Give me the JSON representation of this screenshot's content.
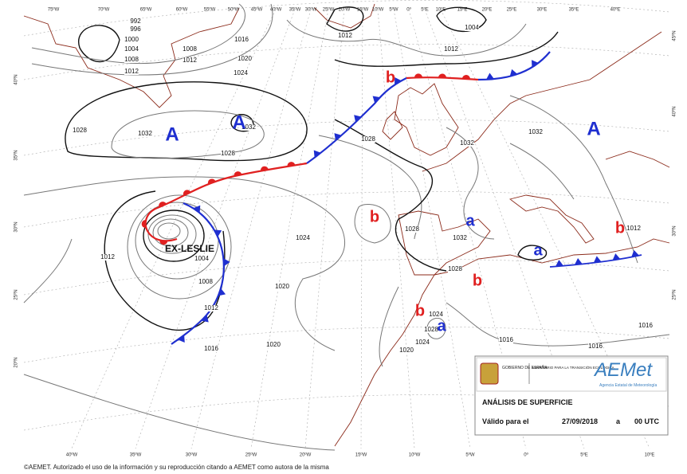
{
  "map": {
    "top_longitudes": [
      "75ºW",
      "70ºW",
      "65ºW",
      "60ºW",
      "55ºW",
      "50ºW",
      "45ºW",
      "40ºW",
      "35ºW",
      "30ºW",
      "25ºW",
      "20ºW",
      "15ºW",
      "10ºW",
      "5ºW",
      "0º",
      "5ºE",
      "10ºE",
      "15ºE",
      "20ºE",
      "25ºE",
      "30ºE",
      "35ºE",
      "40ºE"
    ],
    "bottom_longitudes": [
      "40ºW",
      "35ºW",
      "30ºW",
      "25ºW",
      "20ºW",
      "15ºW",
      "10ºW",
      "5ºW",
      "0º",
      "5ºE",
      "10ºE"
    ],
    "left_latitudes": [
      "40ºN",
      "35ºN",
      "30ºN",
      "25ºN",
      "20ºN"
    ],
    "right_latitudes": [
      "45ºN",
      "40ºN",
      "30ºN",
      "25ºN"
    ],
    "pressure_centers": [
      "A",
      "A",
      "A",
      "b",
      "b",
      "b",
      "b",
      "b",
      "a",
      "a",
      "a"
    ],
    "storm_name": "EX-LESLIE",
    "isobar_labels": [
      992,
      996,
      1000,
      1004,
      1008,
      1012,
      1008,
      1012,
      1012,
      1016,
      1020,
      1024,
      1028,
      1032,
      1032,
      1028,
      1028,
      1032,
      1032,
      1024,
      1020,
      1020,
      1016,
      1012,
      1008,
      1004,
      1012,
      1028,
      1032,
      1028,
      1024,
      1028,
      1024,
      1020,
      1016,
      1016,
      1016,
      1012,
      1012,
      1004
    ]
  },
  "legend": {
    "government": "GOBIERNO DE ESPAÑA",
    "ministry": "MINISTERIO PARA LA TRANSICIÓN ECOLÓGICA",
    "brand": "AEMet",
    "agency": "Agencia Estatal de Meteorología",
    "title": "ANÁLISIS DE SUPERFICIE",
    "valid_label": "Válido para el",
    "date": "27/09/2018",
    "separator": "a",
    "time": "00 UTC"
  },
  "footer": "©AEMET. Autorizado el uso de la información y su reproducción citando a AEMET como autora de la misma"
}
